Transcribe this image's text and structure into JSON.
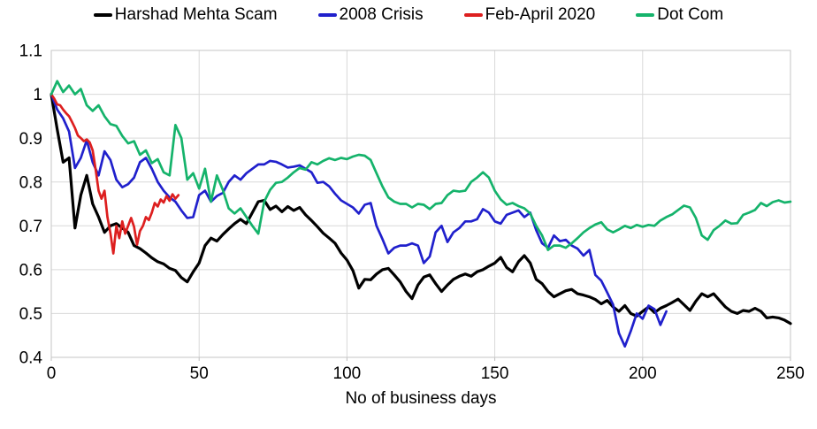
{
  "style": {
    "background": "#ffffff",
    "grid_color": "#d9d9d9",
    "plot_border_color": "#c6c6c6",
    "tick_color": "#bfbfbf",
    "axis_text_color": "#000000"
  },
  "chart_data": {
    "type": "line",
    "title": "",
    "xlabel": "No of business days",
    "ylabel": "",
    "xlim": [
      0,
      250
    ],
    "ylim": [
      0.4,
      1.1
    ],
    "x_ticks": [
      0,
      50,
      100,
      150,
      200,
      250
    ],
    "y_ticks": [
      0.4,
      0.5,
      0.6,
      0.7,
      0.8,
      0.9,
      1,
      1.1
    ],
    "grid": true,
    "legend_position": "top-center",
    "series": [
      {
        "name": "Harshad Mehta Scam",
        "color": "#000000",
        "x_start": 0,
        "x_step": 2,
        "values": [
          1.0,
          0.92,
          0.845,
          0.855,
          0.695,
          0.77,
          0.815,
          0.75,
          0.72,
          0.685,
          0.7,
          0.705,
          0.695,
          0.685,
          0.655,
          0.648,
          0.638,
          0.627,
          0.618,
          0.613,
          0.603,
          0.598,
          0.582,
          0.572,
          0.595,
          0.615,
          0.655,
          0.672,
          0.665,
          0.68,
          0.693,
          0.705,
          0.715,
          0.705,
          0.73,
          0.755,
          0.758,
          0.737,
          0.745,
          0.732,
          0.744,
          0.735,
          0.742,
          0.725,
          0.712,
          0.698,
          0.683,
          0.672,
          0.66,
          0.638,
          0.622,
          0.598,
          0.558,
          0.578,
          0.577,
          0.59,
          0.6,
          0.603,
          0.588,
          0.572,
          0.55,
          0.534,
          0.565,
          0.583,
          0.588,
          0.568,
          0.55,
          0.565,
          0.578,
          0.585,
          0.59,
          0.585,
          0.595,
          0.6,
          0.608,
          0.615,
          0.628,
          0.605,
          0.595,
          0.618,
          0.632,
          0.615,
          0.578,
          0.568,
          0.55,
          0.538,
          0.545,
          0.552,
          0.555,
          0.545,
          0.542,
          0.538,
          0.532,
          0.522,
          0.53,
          0.515,
          0.505,
          0.518,
          0.5,
          0.494,
          0.505,
          0.515,
          0.502,
          0.512,
          0.518,
          0.525,
          0.533,
          0.52,
          0.507,
          0.528,
          0.545,
          0.538,
          0.545,
          0.53,
          0.515,
          0.505,
          0.5,
          0.507,
          0.505,
          0.512,
          0.505,
          0.49,
          0.492,
          0.49,
          0.485,
          0.477
        ]
      },
      {
        "name": "2008 Crisis",
        "color": "#2020cc",
        "x_start": 0,
        "x_step": 2,
        "values": [
          1.0,
          0.965,
          0.945,
          0.915,
          0.832,
          0.855,
          0.895,
          0.845,
          0.815,
          0.87,
          0.85,
          0.805,
          0.788,
          0.795,
          0.81,
          0.845,
          0.855,
          0.83,
          0.8,
          0.78,
          0.765,
          0.755,
          0.735,
          0.718,
          0.72,
          0.77,
          0.78,
          0.755,
          0.768,
          0.775,
          0.8,
          0.815,
          0.805,
          0.82,
          0.83,
          0.84,
          0.84,
          0.848,
          0.846,
          0.84,
          0.833,
          0.835,
          0.838,
          0.83,
          0.822,
          0.798,
          0.8,
          0.79,
          0.773,
          0.758,
          0.75,
          0.742,
          0.728,
          0.748,
          0.752,
          0.7,
          0.67,
          0.637,
          0.65,
          0.655,
          0.655,
          0.66,
          0.655,
          0.615,
          0.63,
          0.685,
          0.7,
          0.663,
          0.685,
          0.695,
          0.71,
          0.71,
          0.715,
          0.738,
          0.73,
          0.71,
          0.705,
          0.725,
          0.73,
          0.735,
          0.72,
          0.73,
          0.69,
          0.66,
          0.65,
          0.678,
          0.665,
          0.668,
          0.655,
          0.648,
          0.632,
          0.645,
          0.588,
          0.575,
          0.548,
          0.52,
          0.455,
          0.425,
          0.46,
          0.5,
          0.488,
          0.518,
          0.51,
          0.474,
          0.505
        ]
      },
      {
        "name": "Feb-April 2020",
        "color": "#dd1f1f",
        "x_start": 0,
        "x_step": 1,
        "values": [
          1.0,
          0.99,
          0.977,
          0.975,
          0.965,
          0.957,
          0.95,
          0.937,
          0.923,
          0.906,
          0.9,
          0.893,
          0.897,
          0.89,
          0.872,
          0.828,
          0.78,
          0.762,
          0.78,
          0.72,
          0.683,
          0.637,
          0.7,
          0.672,
          0.71,
          0.682,
          0.7,
          0.718,
          0.698,
          0.657,
          0.688,
          0.7,
          0.72,
          0.713,
          0.73,
          0.752,
          0.744,
          0.76,
          0.753,
          0.768,
          0.757,
          0.772,
          0.762,
          0.77
        ]
      },
      {
        "name": "Dot Com",
        "color": "#15b36b",
        "x_start": 0,
        "x_step": 2,
        "values": [
          1.0,
          1.03,
          1.005,
          1.02,
          1.0,
          1.012,
          0.975,
          0.962,
          0.975,
          0.95,
          0.932,
          0.928,
          0.905,
          0.888,
          0.893,
          0.862,
          0.872,
          0.843,
          0.852,
          0.822,
          0.815,
          0.93,
          0.9,
          0.805,
          0.82,
          0.785,
          0.83,
          0.755,
          0.815,
          0.782,
          0.74,
          0.728,
          0.74,
          0.72,
          0.7,
          0.682,
          0.755,
          0.782,
          0.798,
          0.8,
          0.81,
          0.822,
          0.832,
          0.828,
          0.845,
          0.84,
          0.848,
          0.854,
          0.85,
          0.855,
          0.852,
          0.858,
          0.862,
          0.86,
          0.85,
          0.82,
          0.79,
          0.765,
          0.755,
          0.75,
          0.75,
          0.742,
          0.75,
          0.748,
          0.738,
          0.75,
          0.752,
          0.77,
          0.78,
          0.778,
          0.78,
          0.8,
          0.81,
          0.822,
          0.81,
          0.78,
          0.76,
          0.748,
          0.752,
          0.745,
          0.74,
          0.728,
          0.7,
          0.678,
          0.645,
          0.655,
          0.655,
          0.65,
          0.66,
          0.672,
          0.685,
          0.695,
          0.703,
          0.708,
          0.692,
          0.685,
          0.692,
          0.7,
          0.695,
          0.702,
          0.698,
          0.702,
          0.7,
          0.712,
          0.72,
          0.726,
          0.736,
          0.746,
          0.742,
          0.718,
          0.678,
          0.668,
          0.69,
          0.7,
          0.712,
          0.705,
          0.706,
          0.725,
          0.73,
          0.736,
          0.752,
          0.745,
          0.754,
          0.758,
          0.753,
          0.755
        ]
      }
    ]
  }
}
